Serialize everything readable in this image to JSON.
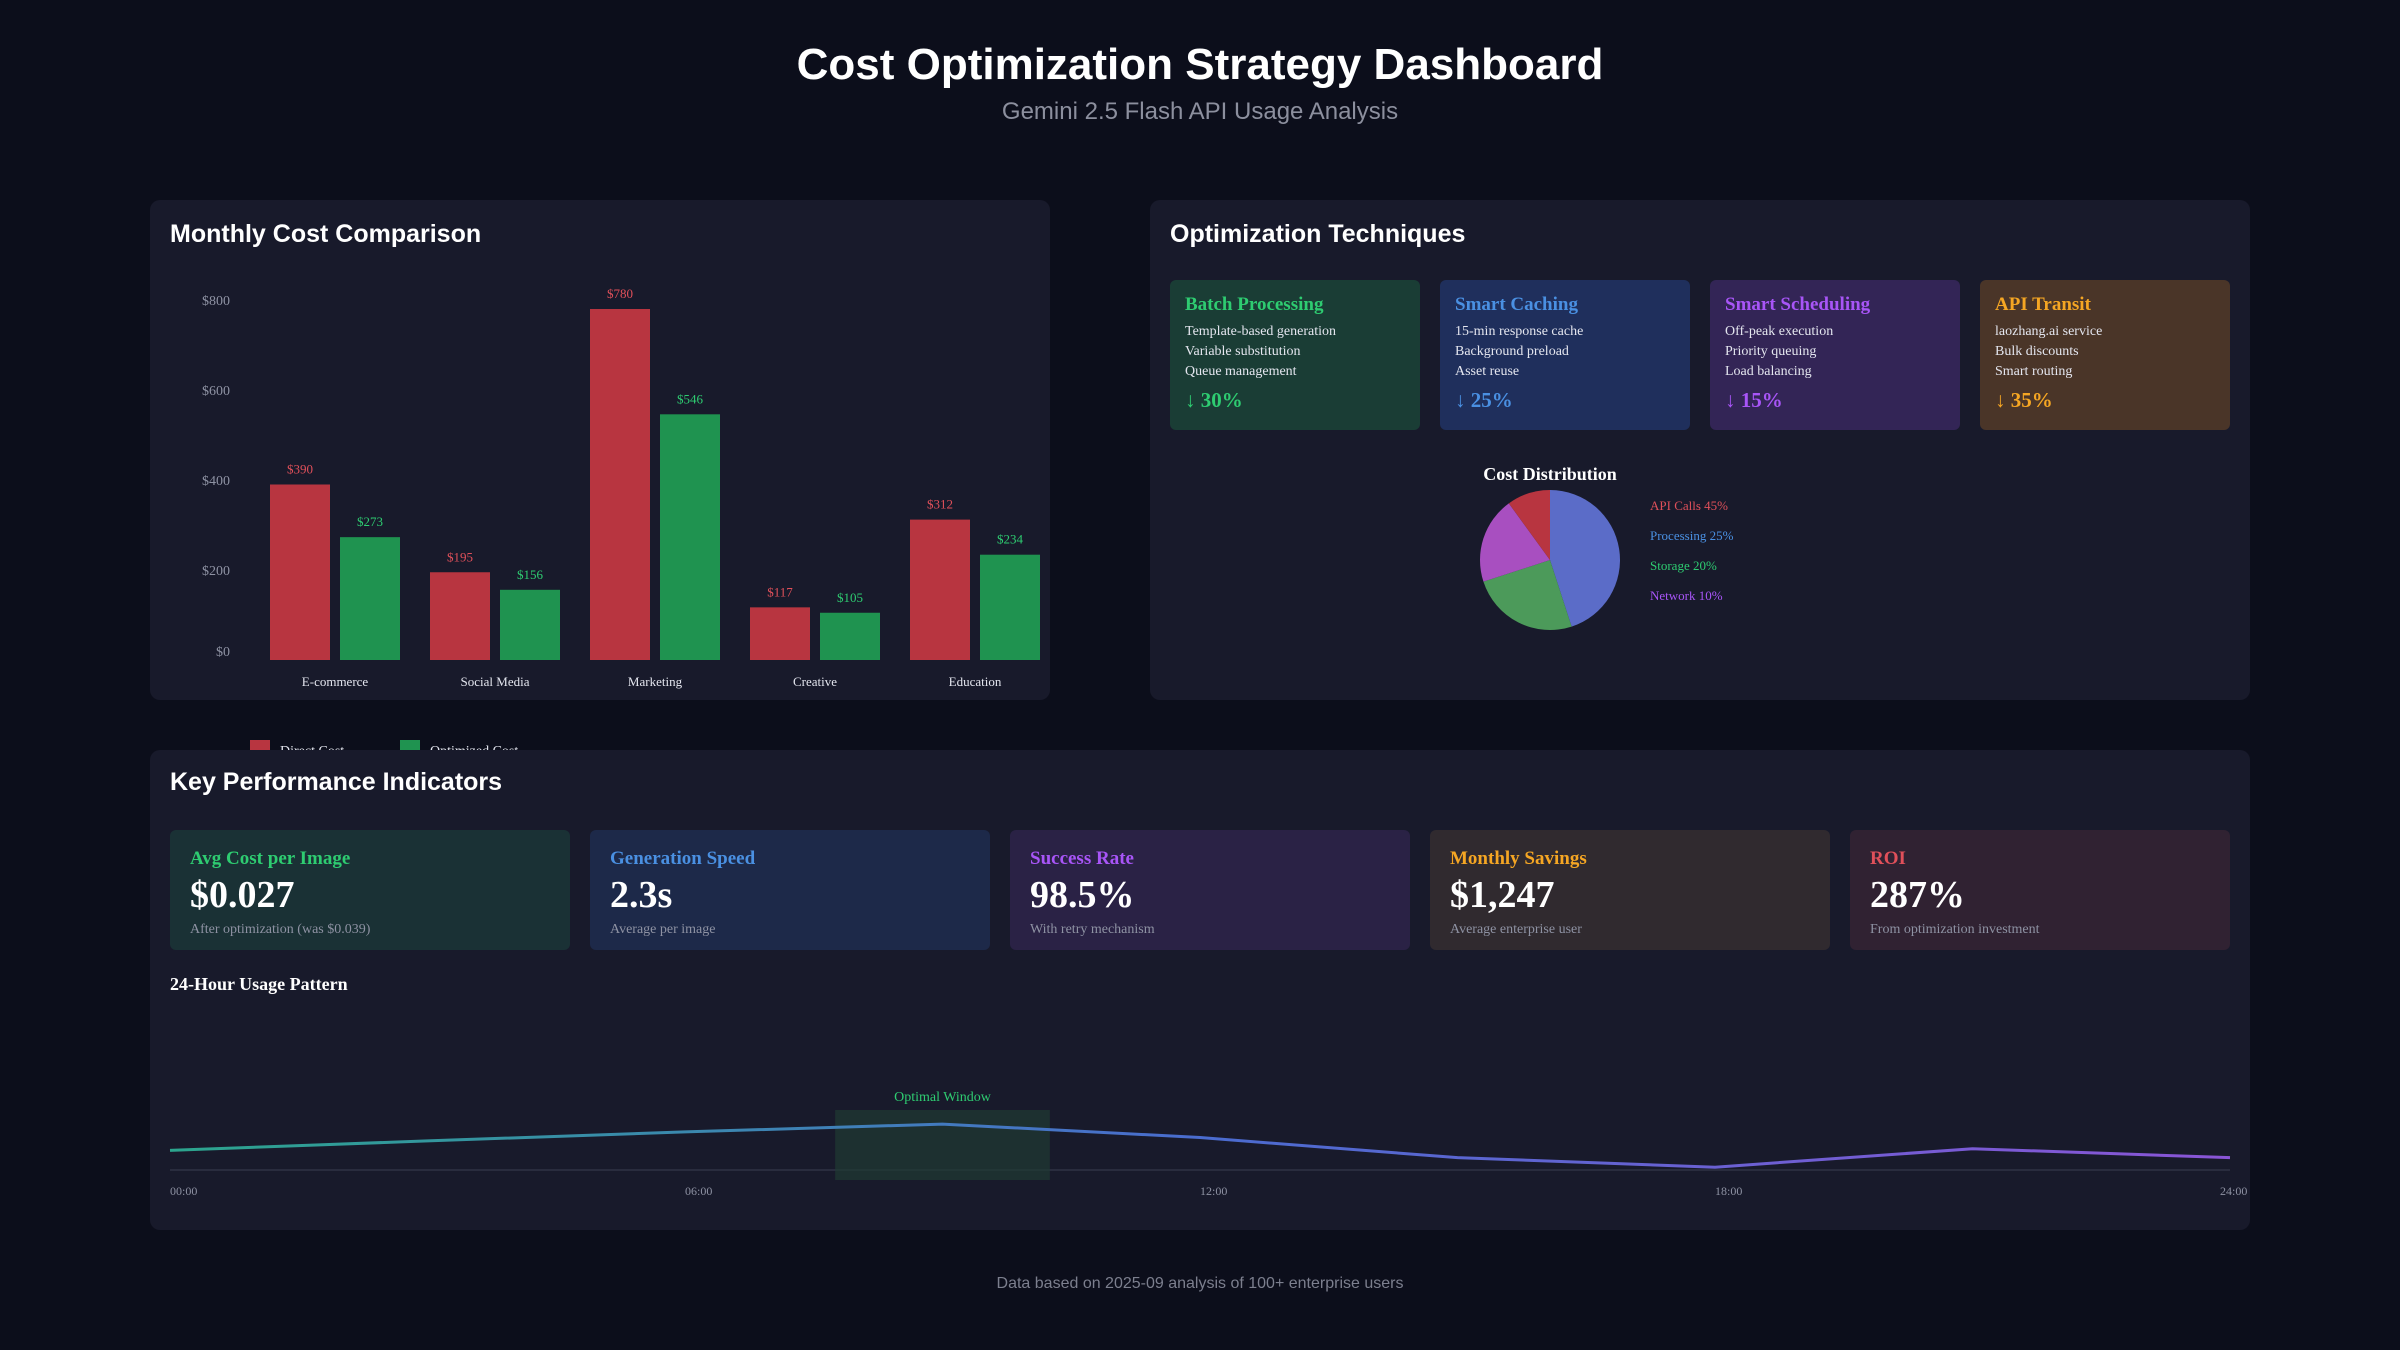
{
  "header": {
    "title": "Cost Optimization Strategy Dashboard",
    "subtitle": "Gemini 2.5 Flash API Usage Analysis"
  },
  "colors": {
    "direct": "#b83540",
    "optimized": "#1f9350",
    "green": "#2ecc71",
    "blue": "#4a90e2",
    "purple": "#a855f7",
    "orange": "#f5a623",
    "red": "#e0505a"
  },
  "cost_panel": {
    "title": "Monthly Cost Comparison"
  },
  "tech_panel": {
    "title": "Optimization Techniques",
    "cards": [
      {
        "title": "Batch Processing",
        "items": [
          "Template-based generation",
          "Variable substitution",
          "Queue management"
        ],
        "reduction": "↓ 30%"
      },
      {
        "title": "Smart Caching",
        "items": [
          "15-min response cache",
          "Background preload",
          "Asset reuse"
        ],
        "reduction": "↓ 25%"
      },
      {
        "title": "Smart Scheduling",
        "items": [
          "Off-peak execution",
          "Priority queuing",
          "Load balancing"
        ],
        "reduction": "↓ 15%"
      },
      {
        "title": "API Transit",
        "items": [
          "laozhang.ai service",
          "Bulk discounts",
          "Smart routing"
        ],
        "reduction": "↓ 35%"
      }
    ]
  },
  "kpi_panel": {
    "title": "Key Performance Indicators",
    "cards": [
      {
        "label": "Avg Cost per Image",
        "value": "$0.027",
        "note": "After optimization (was $0.039)"
      },
      {
        "label": "Generation Speed",
        "value": "2.3s",
        "note": "Average per image"
      },
      {
        "label": "Success Rate",
        "value": "98.5%",
        "note": "With retry mechanism"
      },
      {
        "label": "Monthly Savings",
        "value": "$1,247",
        "note": "Average enterprise user"
      },
      {
        "label": "ROI",
        "value": "287%",
        "note": "From optimization investment"
      }
    ]
  },
  "chart_data": [
    {
      "type": "bar",
      "title": "Monthly Cost Comparison",
      "categories": [
        "E-commerce",
        "Social Media",
        "Marketing",
        "Creative",
        "Education"
      ],
      "series": [
        {
          "name": "Direct Cost",
          "values": [
            390,
            195,
            780,
            117,
            312
          ],
          "labels": [
            "$390",
            "$195",
            "$780",
            "$117",
            "$312"
          ]
        },
        {
          "name": "Optimized Cost",
          "values": [
            273,
            156,
            546,
            105,
            234
          ],
          "labels": [
            "$273",
            "$156",
            "$546",
            "$105",
            "$234"
          ]
        }
      ],
      "yticks": [
        "$0",
        "$200",
        "$400",
        "$600",
        "$800"
      ],
      "ylim": [
        0,
        800
      ],
      "legend": "bottom-left"
    },
    {
      "type": "pie",
      "title": "Cost Distribution",
      "slices": [
        {
          "label": "API Calls 45%",
          "value": 45,
          "color": "#5b6cc8",
          "text_color": "#e0505a"
        },
        {
          "label": "Processing 25%",
          "value": 25,
          "color": "#4c9a5a",
          "text_color": "#4a90e2"
        },
        {
          "label": "Storage 20%",
          "value": 20,
          "color": "#a84fc0",
          "text_color": "#2ecc71"
        },
        {
          "label": "Network 10%",
          "value": 10,
          "color": "#b83540",
          "text_color": "#a855f7"
        }
      ]
    },
    {
      "type": "line",
      "title": "24-Hour Usage Pattern",
      "x": [
        0,
        3,
        6,
        9,
        12,
        15,
        18,
        21,
        24
      ],
      "y": [
        35,
        52,
        68,
        82,
        58,
        22,
        5,
        38,
        22
      ],
      "ylim": [
        0,
        100
      ],
      "xticks": [
        "00:00",
        "06:00",
        "12:00",
        "18:00",
        "24:00"
      ],
      "annotation": {
        "label": "Optimal Window",
        "from": 7.75,
        "to": 10.25
      }
    }
  ],
  "footer": {
    "text": "Data based on 2025-09 analysis of 100+ enterprise users"
  }
}
